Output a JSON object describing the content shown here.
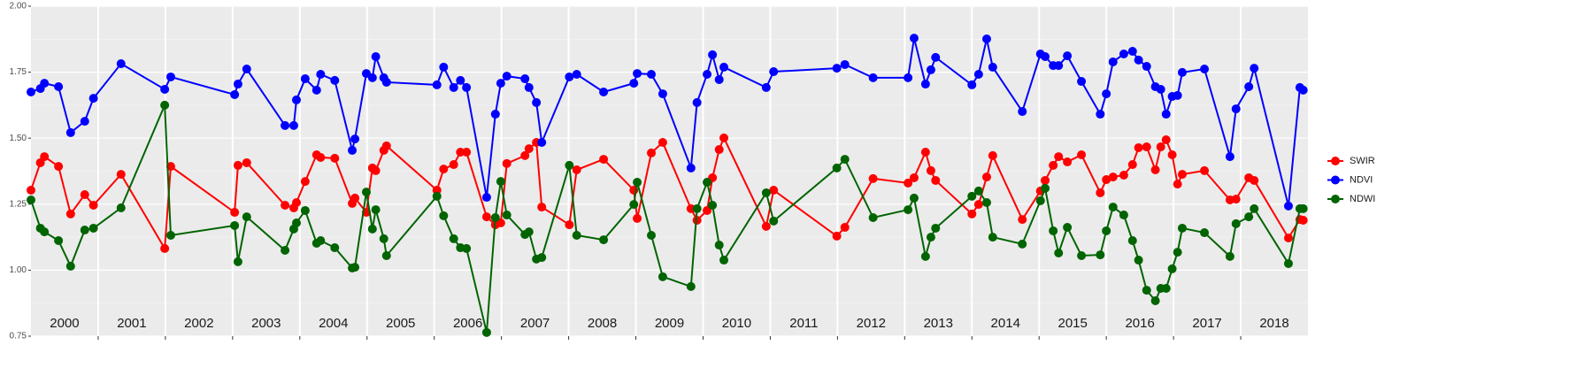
{
  "chart_data": {
    "type": "line",
    "xlim": [
      2000,
      2019
    ],
    "ylim": [
      0.75,
      2.0
    ],
    "yticks": [
      0.75,
      {
        "value": 1,
        "label": "1.00"
      },
      1.25,
      {
        "value": 1.5,
        "label": "1.50"
      },
      1.75,
      {
        "value": 2,
        "label": "2.00"
      }
    ],
    "grid": true,
    "legend": "right",
    "year_labels": [
      "2000",
      "2001",
      "2002",
      "2003",
      "2004",
      "2005",
      "2006",
      "2007",
      "2008",
      "2009",
      "2010",
      "2011",
      "2012",
      "2013",
      "2014",
      "2015",
      "2016",
      "2017",
      "2018"
    ],
    "x": [
      2000.0,
      2000.14,
      2000.2,
      2000.41,
      2000.59,
      2000.8,
      2000.93,
      2001.34,
      2001.99,
      2002.08,
      2003.03,
      2003.08,
      2003.21,
      2003.78,
      2003.91,
      2003.95,
      2004.08,
      2004.25,
      2004.31,
      2004.52,
      2004.78,
      2004.82,
      2004.99,
      2005.08,
      2005.13,
      2005.25,
      2005.29,
      2006.04,
      2006.14,
      2006.29,
      2006.39,
      2006.48,
      2006.78,
      2006.91,
      2006.99,
      2007.08,
      2007.35,
      2007.41,
      2007.52,
      2007.6,
      2008.01,
      2008.12,
      2008.52,
      2008.97,
      2009.02,
      2009.23,
      2009.4,
      2009.82,
      2009.91,
      2010.06,
      2010.14,
      2010.24,
      2010.31,
      2010.94,
      2011.05,
      2011.99,
      2012.11,
      2012.53,
      2013.05,
      2013.14,
      2013.31,
      2013.39,
      2013.46,
      2014.0,
      2014.1,
      2014.22,
      2014.31,
      2014.75,
      2015.02,
      2015.09,
      2015.21,
      2015.29,
      2015.42,
      2015.63,
      2015.91,
      2016.0,
      2016.1,
      2016.26,
      2016.39,
      2016.48,
      2016.6,
      2016.73,
      2016.81,
      2016.89,
      2016.98,
      2017.06,
      2017.13,
      2017.46,
      2017.84,
      2017.93,
      2018.12,
      2018.2,
      2018.71,
      2018.88,
      2018.93
    ],
    "series": [
      {
        "name": "SWIR",
        "color": "#ff0000",
        "values": [
          1.303,
          1.407,
          1.43,
          1.393,
          1.213,
          1.286,
          1.246,
          1.363,
          1.082,
          1.393,
          1.219,
          1.397,
          1.407,
          1.246,
          1.236,
          1.256,
          1.336,
          1.437,
          1.427,
          1.424,
          1.253,
          1.273,
          1.219,
          1.387,
          1.377,
          1.454,
          1.471,
          1.303,
          1.383,
          1.4,
          1.447,
          1.447,
          1.202,
          1.172,
          1.179,
          1.404,
          1.434,
          1.46,
          1.484,
          1.239,
          1.172,
          1.38,
          1.42,
          1.303,
          1.196,
          1.444,
          1.484,
          1.233,
          1.189,
          1.226,
          1.35,
          1.457,
          1.501,
          1.166,
          1.303,
          1.129,
          1.162,
          1.347,
          1.33,
          1.35,
          1.447,
          1.377,
          1.34,
          1.213,
          1.249,
          1.353,
          1.434,
          1.192,
          1.3,
          1.34,
          1.397,
          1.43,
          1.41,
          1.437,
          1.293,
          1.343,
          1.353,
          1.36,
          1.4,
          1.464,
          1.467,
          1.38,
          1.467,
          1.494,
          1.437,
          1.326,
          1.363,
          1.377,
          1.266,
          1.269,
          1.35,
          1.34,
          1.122,
          1.192,
          1.189
        ]
      },
      {
        "name": "NDVI",
        "color": "#0000ff",
        "values": [
          1.675,
          1.688,
          1.708,
          1.695,
          1.521,
          1.564,
          1.651,
          1.782,
          1.685,
          1.732,
          1.665,
          1.705,
          1.762,
          1.548,
          1.548,
          1.645,
          1.725,
          1.682,
          1.742,
          1.719,
          1.454,
          1.497,
          1.745,
          1.729,
          1.809,
          1.729,
          1.712,
          1.702,
          1.769,
          1.692,
          1.719,
          1.692,
          1.276,
          1.591,
          1.708,
          1.735,
          1.725,
          1.692,
          1.635,
          1.484,
          1.732,
          1.742,
          1.675,
          1.708,
          1.745,
          1.742,
          1.668,
          1.387,
          1.635,
          1.742,
          1.816,
          1.722,
          1.769,
          1.692,
          1.752,
          1.765,
          1.779,
          1.729,
          1.729,
          1.879,
          1.705,
          1.759,
          1.806,
          1.702,
          1.742,
          1.876,
          1.769,
          1.601,
          1.819,
          1.809,
          1.775,
          1.775,
          1.812,
          1.715,
          1.591,
          1.668,
          1.789,
          1.819,
          1.829,
          1.796,
          1.772,
          1.695,
          1.685,
          1.591,
          1.658,
          1.662,
          1.749,
          1.762,
          1.43,
          1.611,
          1.695,
          1.765,
          1.243,
          1.692,
          1.682
        ]
      },
      {
        "name": "NDWI",
        "color": "#006400",
        "values": [
          1.266,
          1.159,
          1.145,
          1.112,
          1.015,
          1.152,
          1.159,
          1.236,
          1.625,
          1.132,
          1.169,
          1.032,
          1.202,
          1.075,
          1.156,
          1.179,
          1.226,
          1.102,
          1.112,
          1.085,
          1.008,
          1.011,
          1.296,
          1.156,
          1.229,
          1.119,
          1.055,
          1.28,
          1.206,
          1.119,
          1.085,
          1.082,
          0.764,
          1.199,
          1.336,
          1.209,
          1.135,
          1.145,
          1.042,
          1.048,
          1.397,
          1.132,
          1.115,
          1.249,
          1.333,
          1.132,
          0.975,
          0.938,
          1.233,
          1.333,
          1.246,
          1.095,
          1.038,
          1.293,
          1.186,
          1.387,
          1.42,
          1.199,
          1.229,
          1.273,
          1.052,
          1.125,
          1.159,
          1.28,
          1.3,
          1.256,
          1.125,
          1.099,
          1.263,
          1.31,
          1.149,
          1.065,
          1.162,
          1.055,
          1.058,
          1.149,
          1.239,
          1.209,
          1.112,
          1.038,
          0.924,
          0.884,
          0.931,
          0.931,
          1.005,
          1.068,
          1.159,
          1.142,
          1.052,
          1.176,
          1.202,
          1.233,
          1.025,
          1.233,
          1.233
        ]
      }
    ]
  }
}
